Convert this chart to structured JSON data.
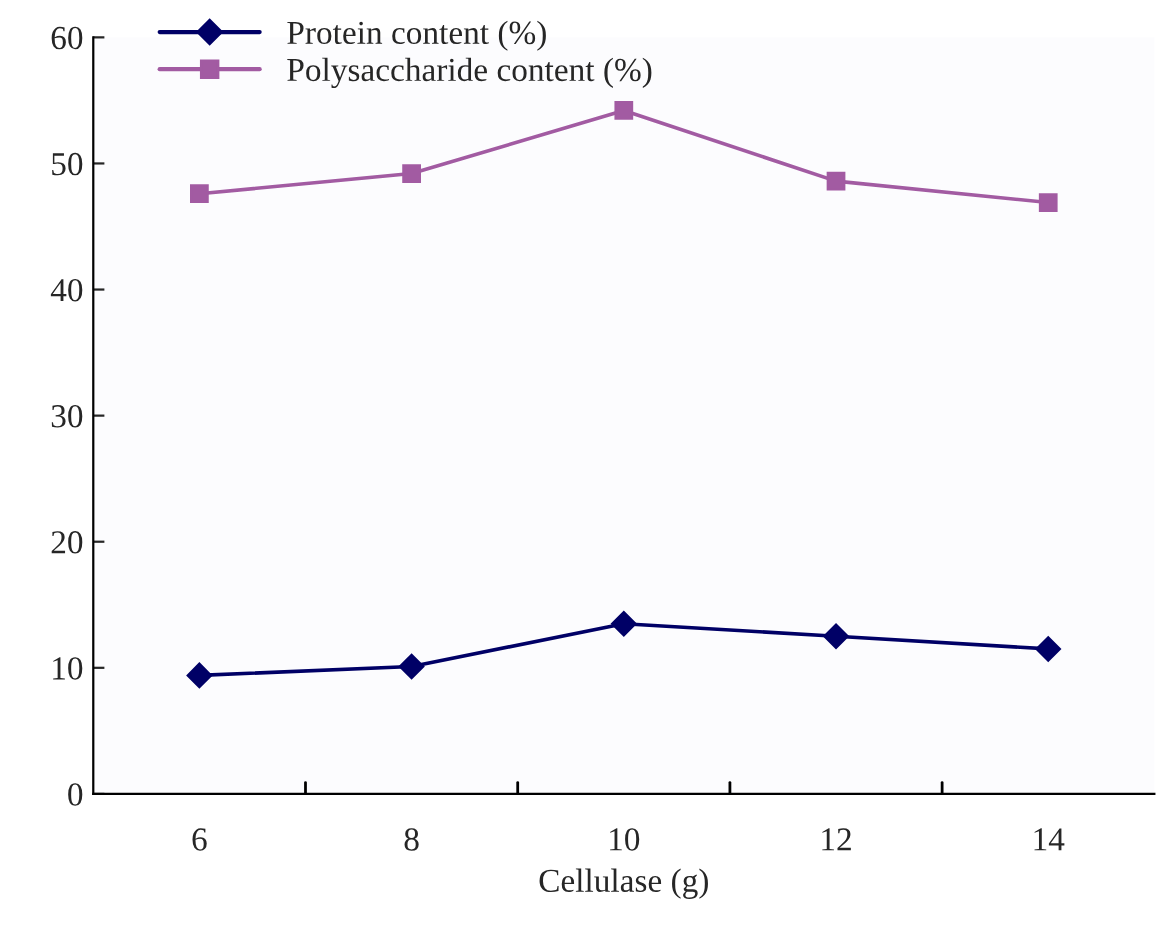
{
  "chart_data": {
    "type": "line",
    "xlabel": "Cellulase (g)",
    "categories": [
      "6",
      "8",
      "10",
      "12",
      "14"
    ],
    "series": [
      {
        "name": "Protein content (%)",
        "color": "#000066",
        "marker": "diamond",
        "values": [
          9.4,
          10.1,
          13.5,
          12.5,
          11.5
        ]
      },
      {
        "name": "Polysaccharide content (%)",
        "color": "#a25ba2",
        "marker": "square",
        "values": [
          47.6,
          49.2,
          54.2,
          48.6,
          46.9
        ]
      }
    ],
    "ylim": [
      0,
      60
    ],
    "yticks": [
      0,
      10,
      20,
      30,
      40,
      50,
      60
    ],
    "legend": "top left",
    "grid": false
  }
}
